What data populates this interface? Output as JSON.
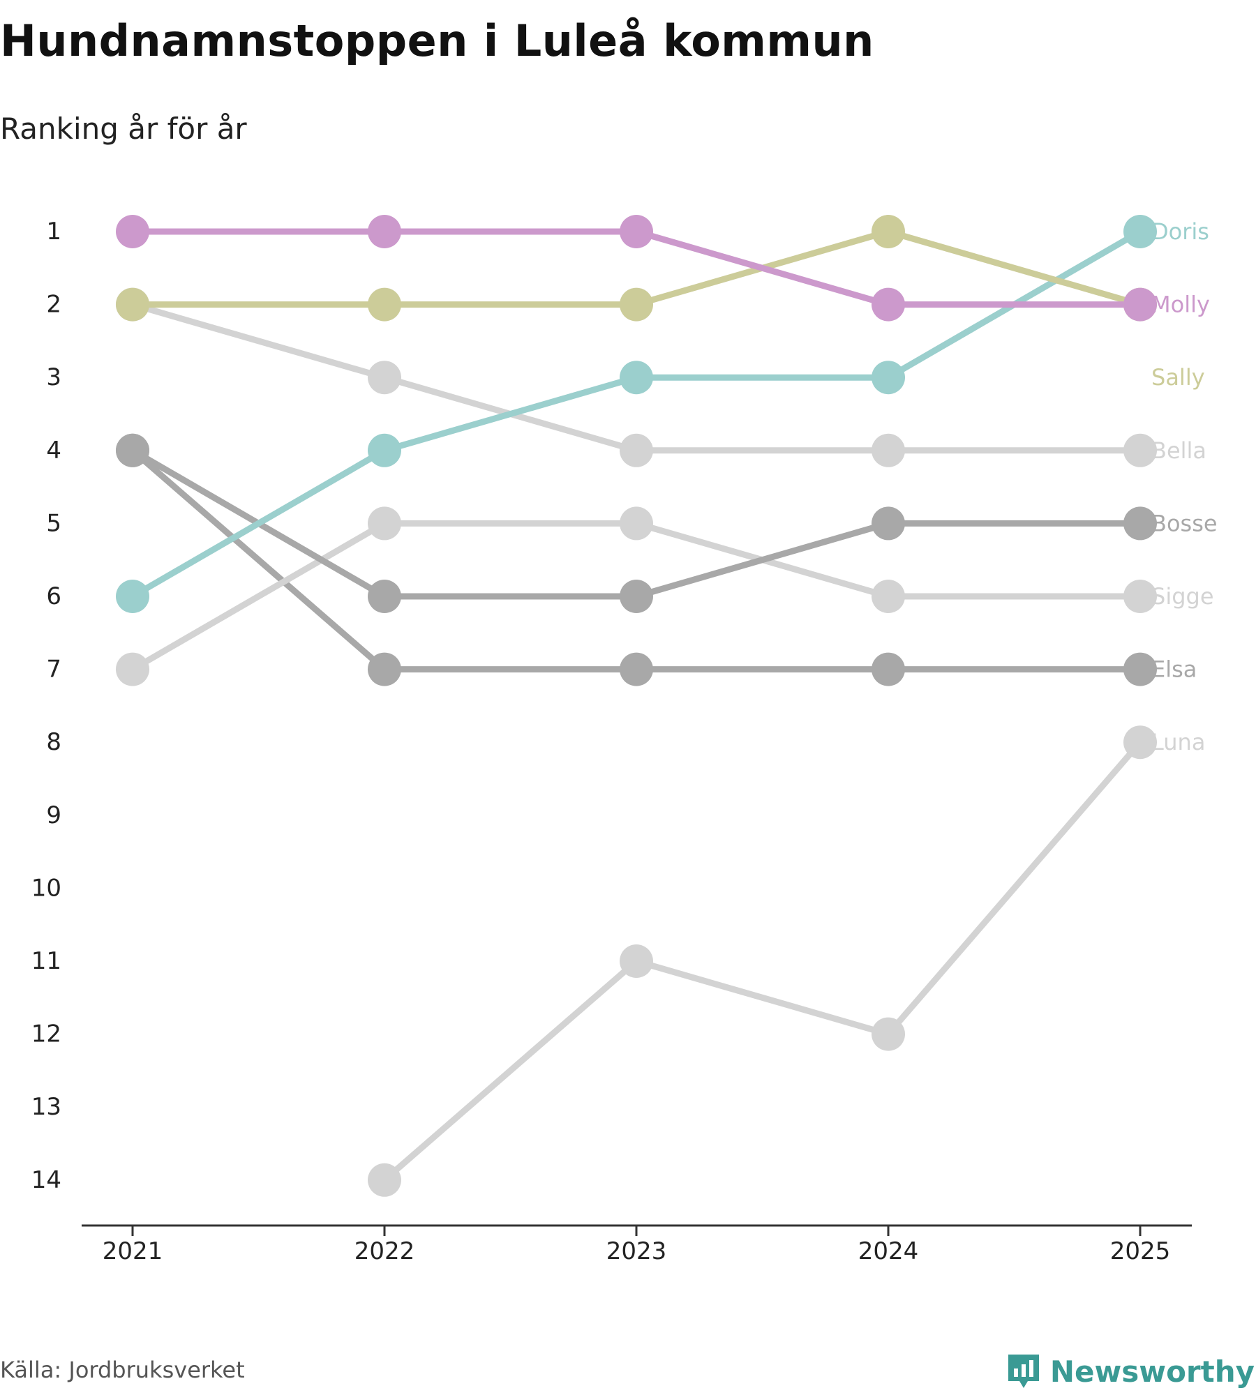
{
  "title": "Hundnamnstoppen i Luleå kommun",
  "subtitle": "Ranking år för år",
  "source": "Källa: Jordbruksverket",
  "brand": {
    "name": "Newsworthy",
    "icon": "newsworthy-logo-icon",
    "color": "#3a9a94"
  },
  "chart_data": {
    "type": "line",
    "title": "Hundnamnstoppen i Luleå kommun",
    "subtitle": "Ranking år för år",
    "xlabel": "",
    "ylabel": "",
    "x": [
      "2021",
      "2022",
      "2023",
      "2024",
      "2025"
    ],
    "y_ticks": [
      "1",
      "2",
      "3",
      "4",
      "5",
      "6",
      "7",
      "8",
      "9",
      "10",
      "11",
      "12",
      "13",
      "14"
    ],
    "ylim": [
      1,
      14
    ],
    "y_inverted": true,
    "grid": false,
    "legend": "direct-labels-right",
    "series": [
      {
        "name": "Luna",
        "color": "#d3d3d3",
        "values": [
          null,
          14,
          11,
          12,
          8
        ]
      },
      {
        "name": "Elsa",
        "color": "#a8a8a8",
        "values": [
          4,
          7,
          7,
          7,
          7
        ]
      },
      {
        "name": "Sigge",
        "color": "#d3d3d3",
        "values": [
          7,
          5,
          5,
          6,
          6
        ]
      },
      {
        "name": "Bosse",
        "color": "#a8a8a8",
        "values": [
          4,
          6,
          6,
          5,
          5
        ]
      },
      {
        "name": "Bella",
        "color": "#d3d3d3",
        "values": [
          2,
          3,
          4,
          4,
          4
        ]
      },
      {
        "name": "Doris",
        "color": "#9bcfcd",
        "values": [
          6,
          4,
          3,
          3,
          1
        ]
      },
      {
        "name": "Sally",
        "color": "#cccc99",
        "values": [
          2,
          2,
          2,
          1,
          2
        ]
      },
      {
        "name": "Molly",
        "color": "#cc99cc",
        "values": [
          1,
          1,
          1,
          2,
          2
        ]
      }
    ],
    "end_labels": [
      {
        "name": "Doris",
        "rank": 1,
        "color": "#9bcfcd"
      },
      {
        "name": "Molly",
        "rank": 2,
        "color": "#cc99cc"
      },
      {
        "name": "Sally",
        "rank": 3,
        "color": "#cccc99"
      },
      {
        "name": "Bella",
        "rank": 4,
        "color": "#d3d3d3"
      },
      {
        "name": "Bosse",
        "rank": 5,
        "color": "#a8a8a8"
      },
      {
        "name": "Sigge",
        "rank": 6,
        "color": "#d3d3d3"
      },
      {
        "name": "Elsa",
        "rank": 7,
        "color": "#a8a8a8"
      },
      {
        "name": "Luna",
        "rank": 8,
        "color": "#d3d3d3"
      }
    ]
  }
}
